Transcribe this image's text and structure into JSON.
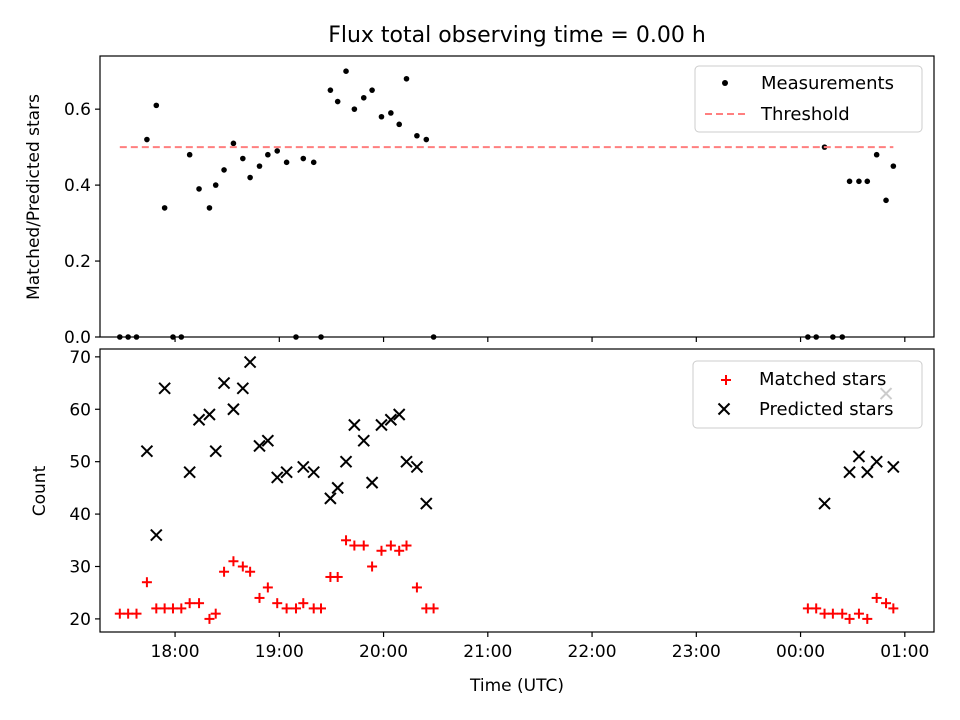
{
  "title": "Flux total observing time = 0.00 h",
  "chart_data": [
    {
      "type": "scatter",
      "ylabel": "Matched/Predicted stars",
      "xlim": [
        17.28,
        25.28
      ],
      "ylim": [
        0,
        0.74
      ],
      "yticks": [
        0.0,
        0.2,
        0.4,
        0.6
      ],
      "yticklabels": [
        "0.0",
        "0.2",
        "0.4",
        "0.6"
      ],
      "legend_position": "top-right",
      "series": [
        {
          "name": "Measurements",
          "marker": "dot",
          "color": "#000000",
          "x": [
            17.47,
            17.55,
            17.63,
            17.73,
            17.82,
            17.9,
            17.98,
            18.06,
            18.14,
            18.23,
            18.33,
            18.39,
            18.47,
            18.56,
            18.65,
            18.72,
            18.81,
            18.89,
            18.98,
            19.07,
            19.16,
            19.23,
            19.33,
            19.4,
            19.49,
            19.56,
            19.64,
            19.72,
            19.81,
            19.89,
            19.98,
            20.07,
            20.15,
            20.22,
            20.32,
            20.41,
            20.48,
            24.07,
            24.15,
            24.23,
            24.31,
            24.4,
            24.47,
            24.56,
            24.64,
            24.73,
            24.82,
            24.89
          ],
          "y": [
            0.0,
            0.0,
            0.0,
            0.52,
            0.61,
            0.34,
            0.0,
            0.0,
            0.48,
            0.39,
            0.34,
            0.4,
            0.44,
            0.51,
            0.47,
            0.42,
            0.45,
            0.48,
            0.49,
            0.46,
            0.0,
            0.47,
            0.46,
            0.0,
            0.65,
            0.62,
            0.7,
            0.6,
            0.63,
            0.65,
            0.58,
            0.59,
            0.56,
            0.68,
            0.53,
            0.52,
            0.0,
            0.0,
            0.0,
            0.5,
            0.0,
            0.0,
            0.41,
            0.41,
            0.41,
            0.48,
            0.36,
            0.45
          ]
        },
        {
          "name": "Threshold",
          "line_style": "dashed",
          "color": "#ff7f7f",
          "x": [
            17.47,
            24.89
          ],
          "y": [
            0.5,
            0.5
          ]
        }
      ]
    },
    {
      "type": "scatter",
      "ylabel": "Count",
      "xlabel": "Time (UTC)",
      "xlim": [
        17.28,
        25.28
      ],
      "ylim": [
        17.5,
        71.5
      ],
      "yticks": [
        20,
        30,
        40,
        50,
        60,
        70
      ],
      "yticklabels": [
        "20",
        "30",
        "40",
        "50",
        "60",
        "70"
      ],
      "xticks": [
        18,
        19,
        20,
        21,
        22,
        23,
        24,
        25
      ],
      "xticklabels": [
        "18:00",
        "19:00",
        "20:00",
        "21:00",
        "22:00",
        "23:00",
        "00:00",
        "01:00"
      ],
      "legend_position": "top-right",
      "series": [
        {
          "name": "Matched stars",
          "marker": "plus",
          "color": "#ff0000",
          "x": [
            17.47,
            17.55,
            17.63,
            17.73,
            17.82,
            17.9,
            17.98,
            18.06,
            18.14,
            18.23,
            18.33,
            18.39,
            18.47,
            18.56,
            18.65,
            18.72,
            18.81,
            18.89,
            18.98,
            19.07,
            19.16,
            19.23,
            19.33,
            19.4,
            19.49,
            19.56,
            19.64,
            19.72,
            19.81,
            19.89,
            19.98,
            20.07,
            20.15,
            20.22,
            20.32,
            20.41,
            20.48,
            24.07,
            24.15,
            24.23,
            24.31,
            24.4,
            24.47,
            24.56,
            24.64,
            24.73,
            24.82,
            24.89
          ],
          "y": [
            21,
            21,
            21,
            27,
            22,
            22,
            22,
            22,
            23,
            23,
            20,
            21,
            29,
            31,
            30,
            29,
            24,
            26,
            23,
            22,
            22,
            23,
            22,
            22,
            28,
            28,
            35,
            34,
            34,
            30,
            33,
            34,
            33,
            34,
            26,
            22,
            22,
            22,
            22,
            21,
            21,
            21,
            20,
            21,
            20,
            24,
            23,
            22
          ]
        },
        {
          "name": "Predicted stars",
          "marker": "x",
          "color": "#000000",
          "x": [
            17.73,
            17.82,
            17.9,
            18.14,
            18.23,
            18.33,
            18.39,
            18.47,
            18.56,
            18.65,
            18.72,
            18.81,
            18.89,
            18.98,
            19.07,
            19.23,
            19.33,
            19.49,
            19.56,
            19.64,
            19.72,
            19.81,
            19.89,
            19.98,
            20.07,
            20.15,
            20.22,
            20.32,
            20.41,
            24.23,
            24.47,
            24.56,
            24.64,
            24.73,
            24.82,
            24.89
          ],
          "y": [
            52,
            36,
            64,
            48,
            58,
            59,
            52,
            65,
            60,
            64,
            69,
            53,
            54,
            47,
            48,
            49,
            48,
            43,
            45,
            50,
            57,
            54,
            46,
            57,
            58,
            59,
            50,
            49,
            42,
            42,
            48,
            51,
            48,
            50,
            63,
            49
          ]
        }
      ]
    }
  ]
}
